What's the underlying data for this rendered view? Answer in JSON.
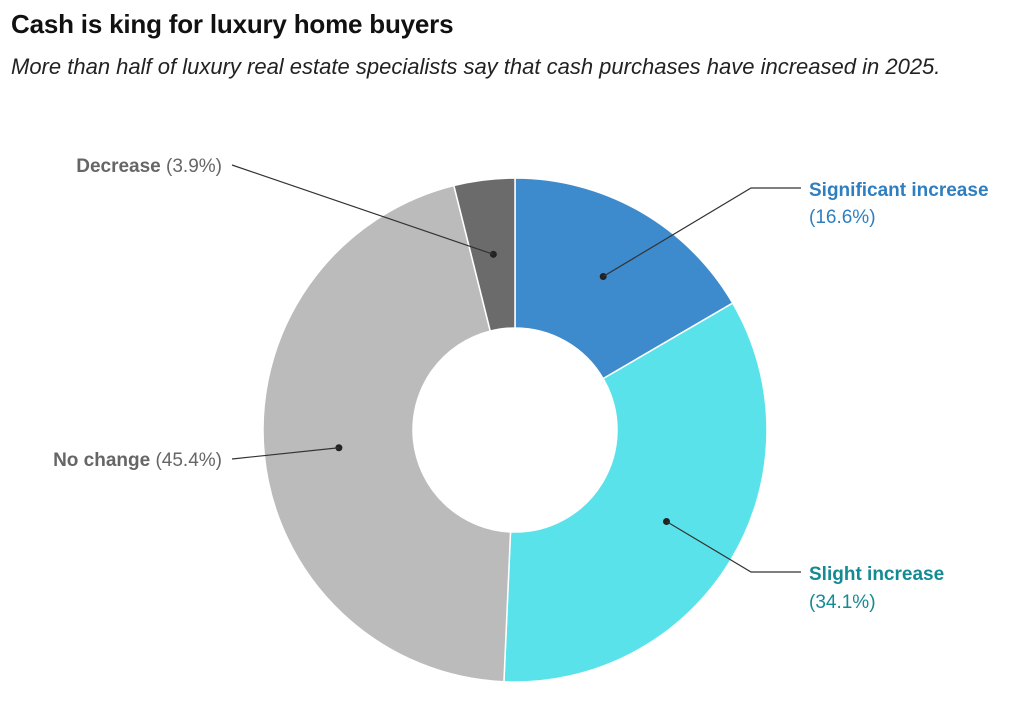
{
  "header": {
    "title": "Cash is king for luxury home buyers",
    "subtitle": "More than half of luxury real estate specialists say that cash purchases have increased in 2025."
  },
  "chart_data": {
    "type": "pie",
    "variant": "donut",
    "unit": "%",
    "slices": [
      {
        "label": "Significant increase",
        "value": 16.6,
        "display": "(16.6%)",
        "color": "#3d8bcd",
        "text_color": "#2f7fc0",
        "label_side": "right"
      },
      {
        "label": "Slight increase",
        "value": 34.1,
        "display": "(34.1%)",
        "color": "#5ae2ea",
        "text_color": "#148a95",
        "label_side": "right"
      },
      {
        "label": "No change",
        "value": 45.4,
        "display": "(45.4%)",
        "color": "#bbbbbb",
        "text_color": "#666666",
        "label_side": "left"
      },
      {
        "label": "Decrease",
        "value": 3.9,
        "display": "(3.9%)",
        "color": "#6b6b6b",
        "text_color": "#666666",
        "label_side": "left"
      }
    ]
  }
}
